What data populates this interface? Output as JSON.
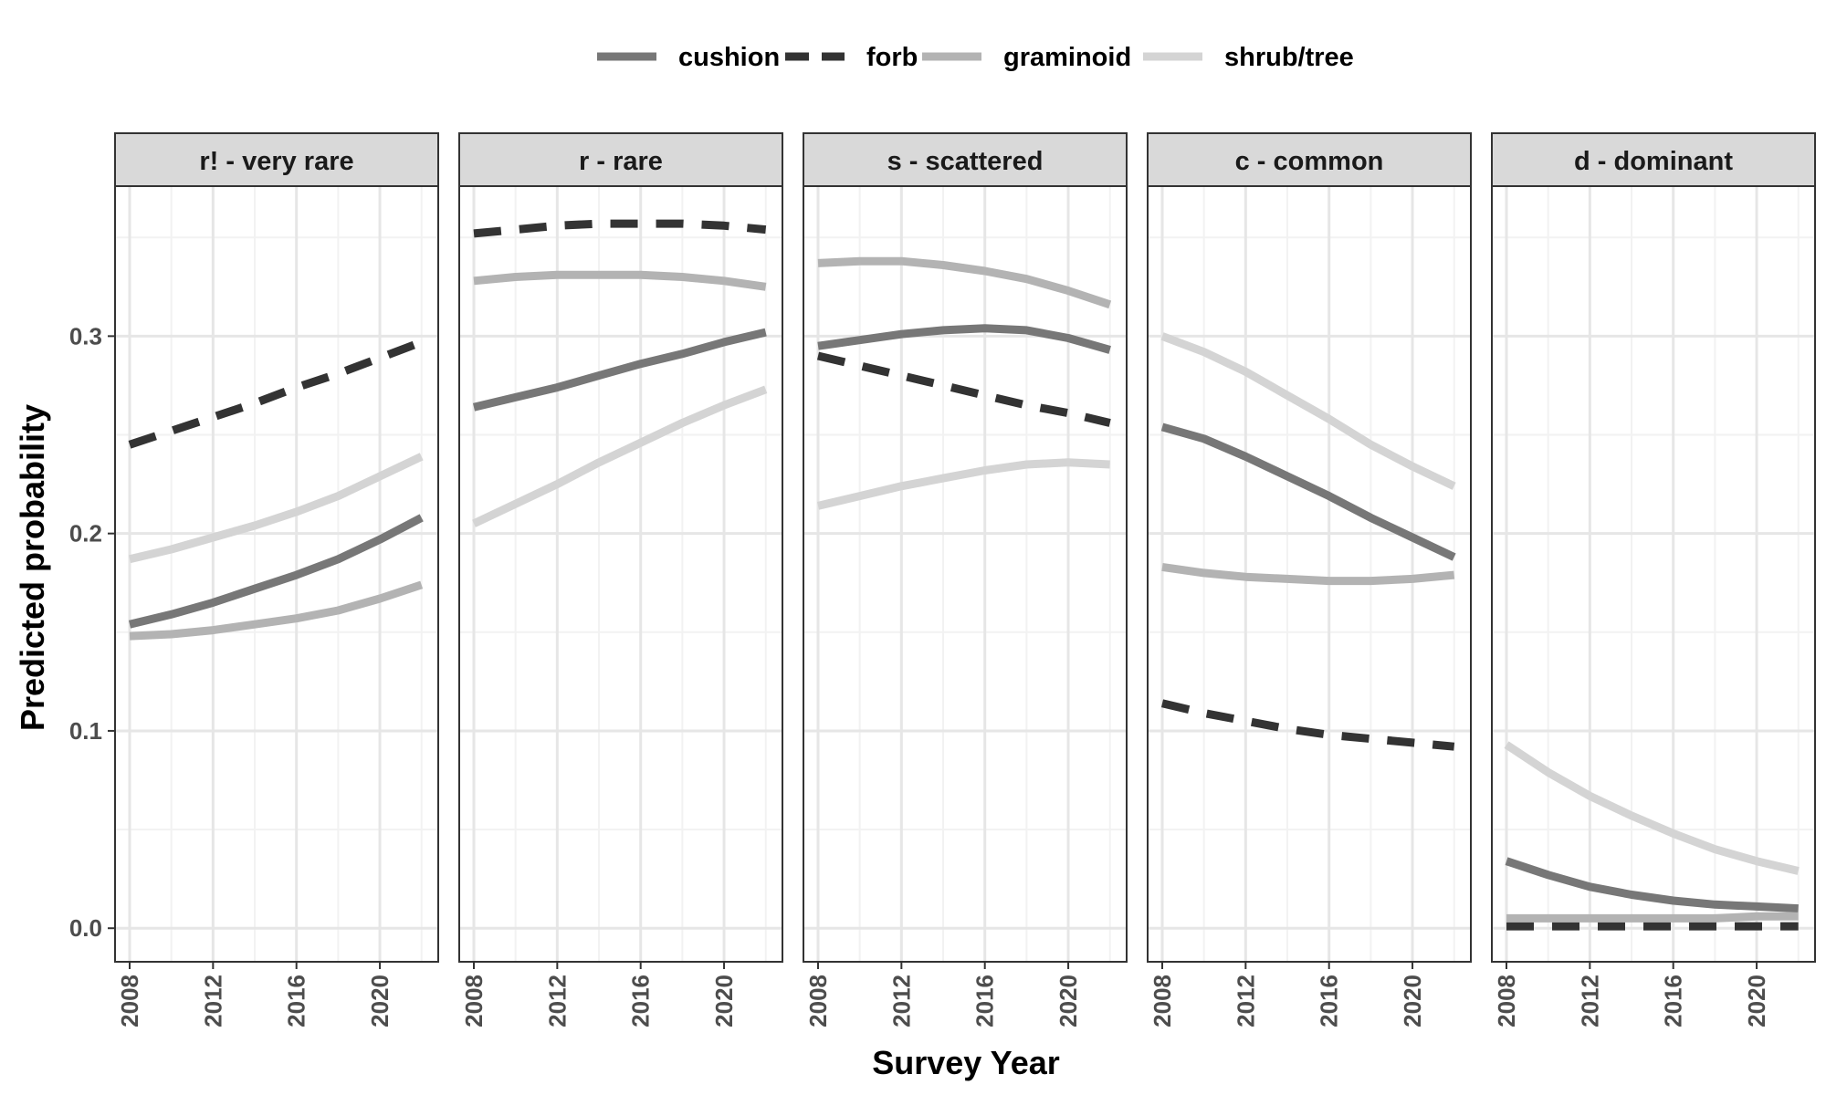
{
  "chart_data": {
    "type": "line",
    "xlabel": "Survey Year",
    "ylabel": "Predicted probability",
    "xlim": [
      2007.3,
      2022.8
    ],
    "ylim": [
      -0.017,
      0.376
    ],
    "x_ticks": [
      2008,
      2012,
      2016,
      2020
    ],
    "x_tick_labels": [
      "2008",
      "2012",
      "2016",
      "2020"
    ],
    "y_ticks": [
      0.0,
      0.1,
      0.2,
      0.3
    ],
    "y_tick_labels": [
      "0.0",
      "0.1",
      "0.2",
      "0.3"
    ],
    "grid": true,
    "legend_position": "top",
    "legend": [
      {
        "name": "cushion",
        "color": "#777777",
        "dash": "solid"
      },
      {
        "name": "forb",
        "color": "#333333",
        "dash": "dashed"
      },
      {
        "name": "graminoid",
        "color": "#b3b3b3",
        "dash": "solid"
      },
      {
        "name": "shrub/tree",
        "color": "#d4d4d4",
        "dash": "solid"
      }
    ],
    "x": [
      2008,
      2010,
      2012,
      2014,
      2016,
      2018,
      2020,
      2022
    ],
    "panels": [
      {
        "title": "r! - very rare",
        "series": [
          {
            "name": "cushion",
            "values": [
              0.154,
              0.159,
              0.165,
              0.172,
              0.179,
              0.187,
              0.197,
              0.208
            ]
          },
          {
            "name": "forb",
            "values": [
              0.245,
              0.252,
              0.259,
              0.266,
              0.274,
              0.281,
              0.289,
              0.297
            ]
          },
          {
            "name": "graminoid",
            "values": [
              0.148,
              0.149,
              0.151,
              0.154,
              0.157,
              0.161,
              0.167,
              0.174
            ]
          },
          {
            "name": "shrub/tree",
            "values": [
              0.187,
              0.192,
              0.198,
              0.204,
              0.211,
              0.219,
              0.229,
              0.239
            ]
          }
        ]
      },
      {
        "title": "r - rare",
        "series": [
          {
            "name": "cushion",
            "values": [
              0.264,
              0.269,
              0.274,
              0.28,
              0.286,
              0.291,
              0.297,
              0.302
            ]
          },
          {
            "name": "forb",
            "values": [
              0.352,
              0.354,
              0.356,
              0.357,
              0.357,
              0.357,
              0.356,
              0.354
            ]
          },
          {
            "name": "graminoid",
            "values": [
              0.328,
              0.33,
              0.331,
              0.331,
              0.331,
              0.33,
              0.328,
              0.325
            ]
          },
          {
            "name": "shrub/tree",
            "values": [
              0.205,
              0.215,
              0.225,
              0.236,
              0.246,
              0.256,
              0.265,
              0.273
            ]
          }
        ]
      },
      {
        "title": "s - scattered",
        "series": [
          {
            "name": "cushion",
            "values": [
              0.295,
              0.298,
              0.301,
              0.303,
              0.304,
              0.303,
              0.299,
              0.293
            ]
          },
          {
            "name": "forb",
            "values": [
              0.29,
              0.285,
              0.28,
              0.275,
              0.27,
              0.265,
              0.261,
              0.256
            ]
          },
          {
            "name": "graminoid",
            "values": [
              0.337,
              0.338,
              0.338,
              0.336,
              0.333,
              0.329,
              0.323,
              0.316
            ]
          },
          {
            "name": "shrub/tree",
            "values": [
              0.214,
              0.219,
              0.224,
              0.228,
              0.232,
              0.235,
              0.236,
              0.235
            ]
          }
        ]
      },
      {
        "title": "c - common",
        "series": [
          {
            "name": "cushion",
            "values": [
              0.254,
              0.248,
              0.239,
              0.229,
              0.219,
              0.208,
              0.198,
              0.188
            ]
          },
          {
            "name": "forb",
            "values": [
              0.114,
              0.109,
              0.105,
              0.101,
              0.098,
              0.096,
              0.094,
              0.092
            ]
          },
          {
            "name": "graminoid",
            "values": [
              0.183,
              0.18,
              0.178,
              0.177,
              0.176,
              0.176,
              0.177,
              0.179
            ]
          },
          {
            "name": "shrub/tree",
            "values": [
              0.3,
              0.292,
              0.282,
              0.27,
              0.258,
              0.245,
              0.234,
              0.224
            ]
          }
        ]
      },
      {
        "title": "d - dominant",
        "series": [
          {
            "name": "cushion",
            "values": [
              0.034,
              0.027,
              0.021,
              0.017,
              0.014,
              0.012,
              0.011,
              0.01
            ]
          },
          {
            "name": "forb",
            "values": [
              0.001,
              0.001,
              0.001,
              0.001,
              0.001,
              0.001,
              0.001,
              0.001
            ]
          },
          {
            "name": "graminoid",
            "values": [
              0.005,
              0.005,
              0.005,
              0.005,
              0.005,
              0.005,
              0.006,
              0.006
            ]
          },
          {
            "name": "shrub/tree",
            "values": [
              0.093,
              0.079,
              0.067,
              0.057,
              0.048,
              0.04,
              0.034,
              0.029
            ]
          }
        ]
      }
    ]
  }
}
